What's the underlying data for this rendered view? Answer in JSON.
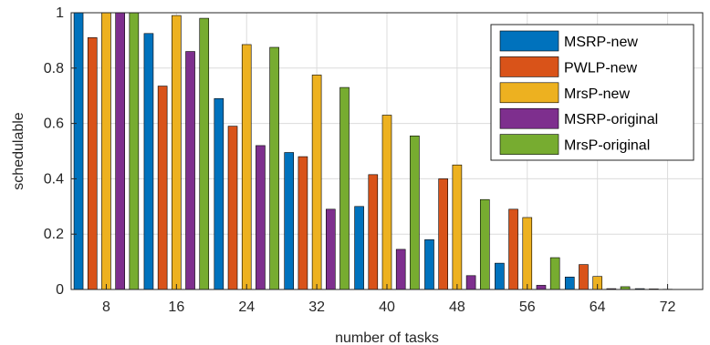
{
  "chart_data": {
    "type": "bar",
    "title": "",
    "xlabel": "number of tasks",
    "ylabel": "schedulable",
    "ylim": [
      0,
      1
    ],
    "yticks": [
      "0",
      "0.2",
      "0.4",
      "0.6",
      "0.8",
      "1"
    ],
    "ytick_values": [
      0,
      0.2,
      0.4,
      0.6,
      0.8,
      1
    ],
    "grid": true,
    "legend_position": "top-right",
    "categories": [
      "8",
      "16",
      "24",
      "32",
      "40",
      "48",
      "56",
      "64",
      "72"
    ],
    "series": [
      {
        "name": "MSRP-new",
        "color": "#0072BD",
        "values": [
          1.0,
          0.925,
          0.69,
          0.495,
          0.3,
          0.18,
          0.095,
          0.045,
          0.003
        ]
      },
      {
        "name": "PWLP-new",
        "color": "#D95319",
        "values": [
          0.91,
          0.735,
          0.59,
          0.48,
          0.415,
          0.4,
          0.29,
          0.09,
          0.002
        ]
      },
      {
        "name": "MrsP-new",
        "color": "#EDB120",
        "values": [
          1.0,
          0.99,
          0.885,
          0.775,
          0.63,
          0.45,
          0.26,
          0.047,
          0.001
        ]
      },
      {
        "name": "MSRP-original",
        "color": "#7E2F8E",
        "values": [
          1.0,
          0.86,
          0.52,
          0.29,
          0.145,
          0.05,
          0.015,
          0.003,
          0.0
        ]
      },
      {
        "name": "MrsP-original",
        "color": "#77AC30",
        "values": [
          1.0,
          0.98,
          0.875,
          0.73,
          0.555,
          0.325,
          0.115,
          0.01,
          0.0
        ]
      }
    ]
  }
}
